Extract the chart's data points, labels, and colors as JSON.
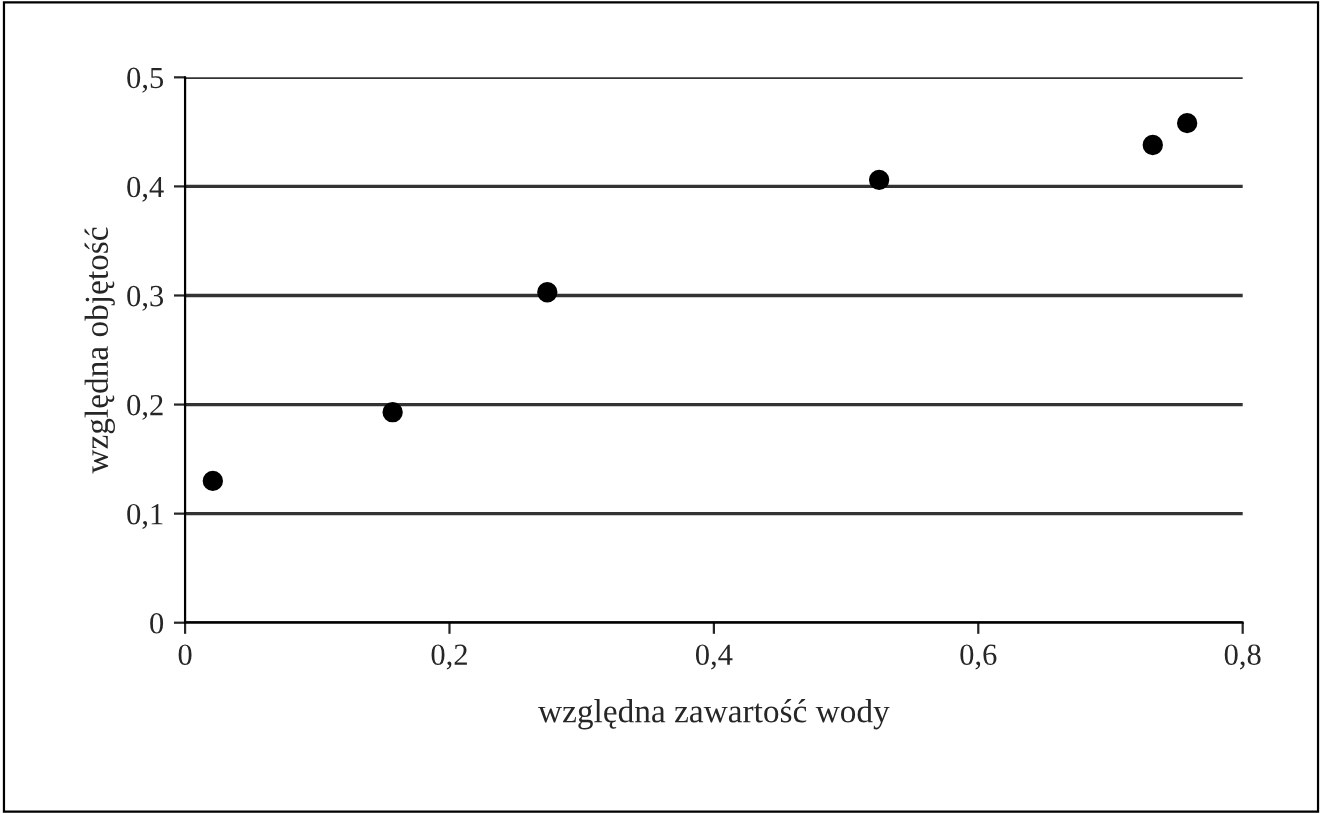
{
  "chart_data": {
    "type": "scatter",
    "xlabel": "względna zawartość wody",
    "ylabel": "względna objętość",
    "x": [
      0.021,
      0.157,
      0.274,
      0.525,
      0.732,
      0.758
    ],
    "series": [
      {
        "color": "#000000",
        "values": [
          0.13,
          0.193,
          0.303,
          0.406,
          0.438,
          0.458
        ]
      }
    ],
    "xlim": [
      0,
      0.8
    ],
    "xticks": [
      {
        "value": 0,
        "label": "0"
      },
      {
        "value": 0.2,
        "label": "0,2"
      },
      {
        "value": 0.4,
        "label": "0,4"
      },
      {
        "value": 0.6,
        "label": "0,6"
      },
      {
        "value": 0.8,
        "label": "0,8"
      }
    ],
    "ylim": [
      0,
      0.5
    ],
    "yticks": [
      {
        "value": 0,
        "label": "0"
      },
      {
        "value": 0.1,
        "label": "0,1"
      },
      {
        "value": 0.2,
        "label": "0,2"
      },
      {
        "value": 0.3,
        "label": "0,3"
      },
      {
        "value": 0.4,
        "label": "0,4"
      },
      {
        "value": 0.5,
        "label": "0,5"
      }
    ],
    "grid": "y",
    "marker": "circle",
    "legend": false
  }
}
